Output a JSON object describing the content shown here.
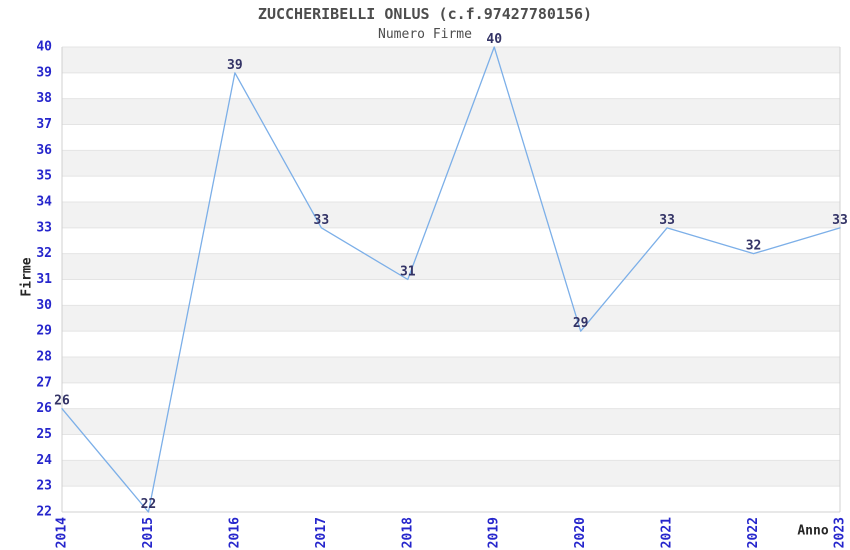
{
  "header": {
    "title": "ZUCCHERIBELLI ONLUS (c.f.97427780156)",
    "subtitle": "Numero Firme"
  },
  "chart_data": {
    "type": "line",
    "title": "ZUCCHERIBELLI ONLUS (c.f.97427780156)",
    "subtitle": "Numero Firme",
    "xlabel": "Anno",
    "ylabel": "Firme",
    "categories": [
      "2014",
      "2015",
      "2016",
      "2017",
      "2018",
      "2019",
      "2020",
      "2021",
      "2022",
      "2023"
    ],
    "values": [
      26,
      22,
      39,
      33,
      31,
      40,
      29,
      33,
      32,
      33
    ],
    "ylim": [
      22,
      40
    ],
    "ytick_step": 1,
    "grid": "horizontal-banded",
    "legend": "none",
    "data_labels_visible": true,
    "colors": {
      "line": "#7cafe8",
      "tick_label": "#2626cc",
      "data_label": "#333366",
      "band": "#f2f2f2",
      "gridline": "#e4e4e4",
      "axis_border": "#d0d0d0",
      "title_text": "#4d4d4d",
      "axis_name_text": "#262626"
    }
  }
}
